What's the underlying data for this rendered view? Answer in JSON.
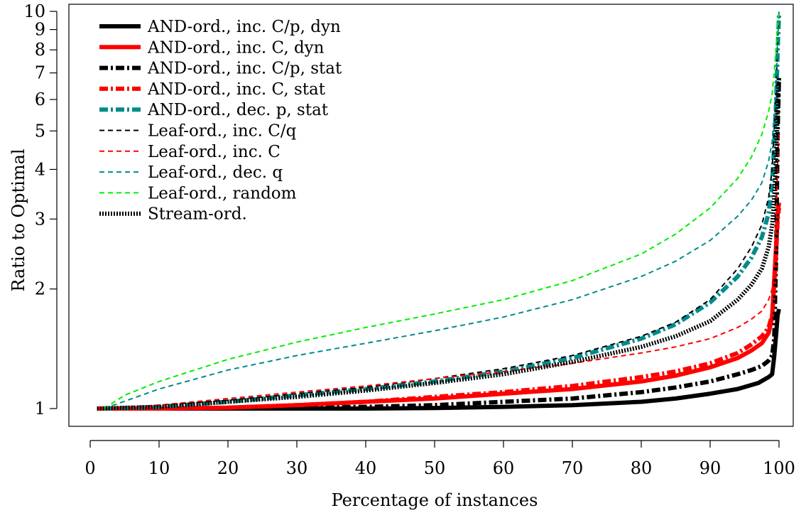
{
  "chart_data": {
    "type": "line",
    "xlabel": "Percentage of instances",
    "ylabel": "Ratio to Optimal",
    "xlim": [
      0,
      100
    ],
    "ylim": [
      1,
      10
    ],
    "y_scale": "log",
    "x_ticks": [
      0,
      10,
      20,
      30,
      40,
      50,
      60,
      70,
      80,
      90,
      100
    ],
    "y_ticks": [
      1,
      2,
      3,
      4,
      5,
      6,
      7,
      8,
      9,
      10
    ],
    "legend_position": "top-left",
    "series": [
      {
        "name": "AND-ord., inc. C/p, dyn",
        "color": "#000000",
        "style": "solid-thick",
        "x": [
          1,
          10,
          20,
          30,
          40,
          50,
          60,
          70,
          80,
          85,
          90,
          94,
          97,
          98.5,
          99,
          99.3,
          99.6,
          99.8,
          100
        ],
        "y": [
          1,
          1,
          1,
          1,
          1,
          1.003,
          1.01,
          1.02,
          1.04,
          1.06,
          1.09,
          1.12,
          1.16,
          1.2,
          1.22,
          1.35,
          1.55,
          1.72,
          1.78
        ]
      },
      {
        "name": "AND-ord., inc. C, dyn",
        "color": "#ff0000",
        "style": "solid-thick",
        "x": [
          1,
          10,
          20,
          30,
          40,
          50,
          60,
          70,
          80,
          85,
          90,
          94,
          96,
          97.5,
          98.5,
          99,
          99.3,
          99.6,
          99.8,
          100
        ],
        "y": [
          1,
          1,
          1.005,
          1.02,
          1.04,
          1.06,
          1.09,
          1.12,
          1.17,
          1.21,
          1.27,
          1.34,
          1.4,
          1.46,
          1.55,
          1.7,
          2.1,
          2.6,
          3.1,
          3.3
        ]
      },
      {
        "name": "AND-ord., inc. C/p, stat",
        "color": "#000000",
        "style": "dashdot-thick",
        "x": [
          1,
          10,
          20,
          30,
          40,
          50,
          60,
          70,
          80,
          85,
          90,
          94,
          96,
          97.5,
          98.5,
          99,
          99.3,
          99.6,
          99.8,
          100
        ],
        "y": [
          1,
          1,
          1,
          1.005,
          1.01,
          1.02,
          1.04,
          1.06,
          1.1,
          1.13,
          1.17,
          1.22,
          1.25,
          1.28,
          1.32,
          1.36,
          1.5,
          2.5,
          5,
          6.8
        ]
      },
      {
        "name": "AND-ord., inc. C, stat",
        "color": "#ff0000",
        "style": "dashdot-thick",
        "x": [
          1,
          10,
          20,
          30,
          40,
          50,
          60,
          70,
          80,
          85,
          90,
          94,
          96,
          97.5,
          98.5,
          99,
          99.3,
          99.6,
          99.8,
          100
        ],
        "y": [
          1,
          1,
          1.005,
          1.02,
          1.04,
          1.07,
          1.1,
          1.14,
          1.2,
          1.24,
          1.3,
          1.38,
          1.45,
          1.52,
          1.6,
          1.72,
          2.05,
          2.5,
          3.0,
          3.2
        ]
      },
      {
        "name": "AND-ord., dec. p, stat",
        "color": "#008b8b",
        "style": "dashdot-thick",
        "x": [
          2,
          10,
          20,
          30,
          40,
          50,
          60,
          70,
          80,
          85,
          90,
          94,
          96,
          97.5,
          98.5,
          99,
          99.3,
          99.6,
          99.8,
          100
        ],
        "y": [
          1,
          1.01,
          1.04,
          1.08,
          1.12,
          1.17,
          1.24,
          1.34,
          1.5,
          1.63,
          1.85,
          2.15,
          2.4,
          2.7,
          3.1,
          3.7,
          4.6,
          6.0,
          8.0,
          9.8
        ]
      },
      {
        "name": "Leaf-ord., inc. C/q",
        "color": "#000000",
        "style": "dashed",
        "x": [
          2,
          10,
          20,
          30,
          40,
          50,
          60,
          70,
          80,
          85,
          90,
          94,
          96,
          97.5,
          98.5,
          99,
          99.3,
          99.6,
          99.8,
          100
        ],
        "y": [
          1,
          1.02,
          1.05,
          1.09,
          1.13,
          1.19,
          1.26,
          1.36,
          1.52,
          1.65,
          1.88,
          2.25,
          2.55,
          2.9,
          3.4,
          4.0,
          5.0,
          6.5,
          8.5,
          10
        ]
      },
      {
        "name": "Leaf-ord., inc. C",
        "color": "#ff0000",
        "style": "dashed",
        "x": [
          2,
          10,
          20,
          30,
          40,
          50,
          60,
          70,
          80,
          85,
          90,
          94,
          96,
          97.5,
          98.5,
          99,
          99.3,
          99.6,
          99.8,
          100
        ],
        "y": [
          1,
          1.02,
          1.06,
          1.1,
          1.14,
          1.19,
          1.24,
          1.3,
          1.38,
          1.43,
          1.5,
          1.6,
          1.68,
          1.76,
          1.88,
          2.0,
          2.3,
          3.0,
          4.2,
          5.0
        ]
      },
      {
        "name": "Leaf-ord., dec. q",
        "color": "#008b8b",
        "style": "dashed",
        "x": [
          2,
          10,
          20,
          30,
          40,
          50,
          60,
          70,
          80,
          85,
          90,
          94,
          96,
          97.5,
          98.5,
          99,
          99.3,
          99.6,
          99.8,
          100
        ],
        "y": [
          1,
          1.12,
          1.25,
          1.36,
          1.46,
          1.57,
          1.7,
          1.88,
          2.15,
          2.35,
          2.65,
          3.05,
          3.35,
          3.7,
          4.2,
          4.7,
          5.5,
          6.8,
          8.5,
          10
        ]
      },
      {
        "name": "Leaf-ord., random",
        "color": "#00ee00",
        "style": "dashed",
        "x": [
          2,
          5,
          10,
          20,
          30,
          40,
          50,
          60,
          70,
          80,
          85,
          90,
          94,
          96,
          97.5,
          98.5,
          99,
          99.3,
          99.6,
          99.8,
          100
        ],
        "y": [
          1,
          1.08,
          1.17,
          1.33,
          1.47,
          1.6,
          1.73,
          1.88,
          2.1,
          2.45,
          2.75,
          3.2,
          3.8,
          4.3,
          4.9,
          5.6,
          6.2,
          7.0,
          8.2,
          9.3,
          10
        ]
      },
      {
        "name": "Stream-ord.",
        "color": "#000000",
        "style": "dotted-thick",
        "x": [
          1,
          10,
          20,
          30,
          40,
          50,
          60,
          70,
          80,
          85,
          90,
          94,
          96,
          97.5,
          98.5,
          99,
          99.3,
          99.6,
          99.8,
          100
        ],
        "y": [
          1,
          1.01,
          1.04,
          1.07,
          1.11,
          1.16,
          1.22,
          1.31,
          1.43,
          1.52,
          1.66,
          1.88,
          2.05,
          2.25,
          2.55,
          2.9,
          3.4,
          4.3,
          5.8,
          6.8
        ]
      }
    ]
  }
}
